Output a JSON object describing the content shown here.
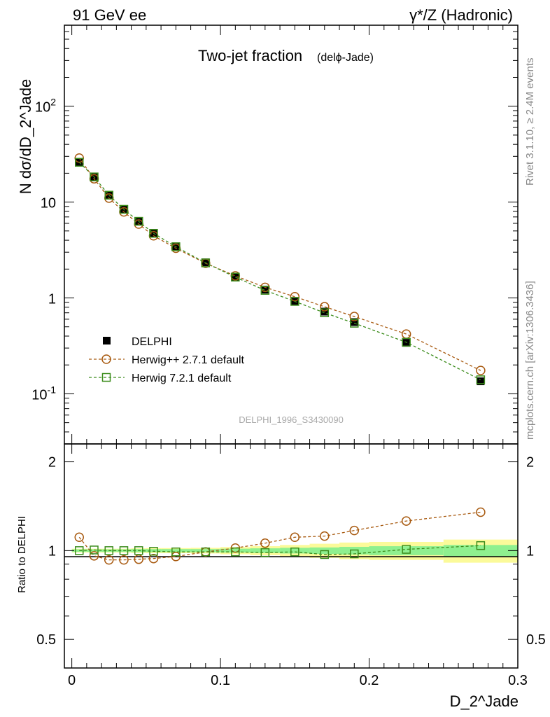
{
  "header": {
    "left": "91 GeV ee",
    "right": "γ*/Z (Hadronic)"
  },
  "chart_data": [
    {
      "panel": "main",
      "type": "line",
      "title": "Two-jet fraction",
      "title_sub": "(delϕ-Jade)",
      "xlabel": "D_2^Jade",
      "ylabel": "N dσ/dD_2^Jade",
      "yscale": "log",
      "ylim": [
        0.03,
        700
      ],
      "xlim": [
        -0.005,
        0.3
      ],
      "yticks": [
        "10^-1",
        "1",
        "10",
        "10^2"
      ],
      "watermark": "DELPHI_1996_S3430090",
      "x": [
        0.005,
        0.015,
        0.025,
        0.035,
        0.045,
        0.055,
        0.07,
        0.09,
        0.11,
        0.13,
        0.15,
        0.17,
        0.19,
        0.225,
        0.275
      ],
      "bin_edges": [
        0.0,
        0.01,
        0.02,
        0.03,
        0.04,
        0.05,
        0.06,
        0.08,
        0.1,
        0.12,
        0.14,
        0.16,
        0.18,
        0.2,
        0.25,
        0.3
      ],
      "series": [
        {
          "name": "DELPHI",
          "style": "data",
          "color": "#000000",
          "values": [
            26.0,
            18.2,
            11.8,
            8.4,
            6.3,
            4.75,
            3.45,
            2.35,
            1.67,
            1.22,
            0.93,
            0.72,
            0.56,
            0.34,
            0.135
          ]
        },
        {
          "name": "Herwig++ 2.7.1 default",
          "style": "circle",
          "color": "#a85a10",
          "values": [
            28.8,
            17.5,
            11.0,
            7.9,
            5.9,
            4.45,
            3.3,
            2.3,
            1.7,
            1.29,
            1.03,
            0.81,
            0.64,
            0.42,
            0.175
          ]
        },
        {
          "name": "Herwig 7.2.1 default",
          "style": "square",
          "color": "#3c8c1c",
          "values": [
            26.0,
            18.3,
            11.8,
            8.4,
            6.3,
            4.72,
            3.42,
            2.32,
            1.65,
            1.2,
            0.92,
            0.7,
            0.545,
            0.345,
            0.14
          ]
        }
      ]
    },
    {
      "panel": "ratio",
      "type": "line",
      "ylabel": "Ratio to DELPHI",
      "xlabel": "D_2^Jade",
      "yscale": "log",
      "ylim": [
        0.4,
        2.3
      ],
      "xlim": [
        -0.005,
        0.3
      ],
      "yticks": [
        "0.5",
        "1",
        "2"
      ],
      "xticks": [
        "0",
        "0.1",
        "0.2",
        "0.3"
      ],
      "band_inner_halfwidth": [
        0.01,
        0.01,
        0.01,
        0.01,
        0.012,
        0.012,
        0.012,
        0.012,
        0.015,
        0.018,
        0.022,
        0.025,
        0.03,
        0.035,
        0.045
      ],
      "band_outer_halfwidth": [
        0.015,
        0.015,
        0.015,
        0.015,
        0.018,
        0.02,
        0.02,
        0.022,
        0.028,
        0.035,
        0.045,
        0.055,
        0.065,
        0.07,
        0.09
      ],
      "series": [
        {
          "name": "Herwig++ 2.7.1 default",
          "style": "circle",
          "color": "#a85a10",
          "values": [
            1.11,
            0.96,
            0.93,
            0.93,
            0.935,
            0.94,
            0.955,
            0.99,
            1.02,
            1.06,
            1.11,
            1.12,
            1.17,
            1.26,
            1.35
          ]
        },
        {
          "name": "Herwig 7.2.1 default",
          "style": "square",
          "color": "#3c8c1c",
          "values": [
            1.0,
            1.005,
            1.0,
            1.0,
            1.0,
            0.995,
            0.99,
            0.99,
            0.99,
            0.985,
            0.99,
            0.97,
            0.975,
            1.01,
            1.04
          ]
        }
      ]
    }
  ],
  "side_text": {
    "upper": "Rivet 3.1.10, ≥ 2.4M events",
    "lower": "mcplots.cern.ch [arXiv:1306.3436]"
  }
}
